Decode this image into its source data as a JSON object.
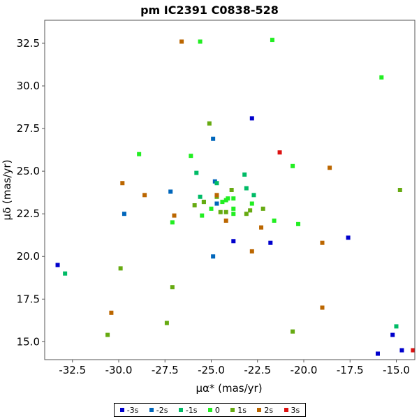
{
  "chart_data": {
    "type": "scatter",
    "title": "pm IC2391  C0838-528",
    "xlabel": "μα* (mas/yr)",
    "ylabel": "μδ (mas/yr)",
    "xlim": [
      -34.0,
      -14.0
    ],
    "ylim": [
      13.95,
      33.85
    ],
    "grid": false,
    "legend_position": "bottom-center",
    "xticks": [
      -32.5,
      -30.0,
      -27.5,
      -25.0,
      -22.5,
      -20.0,
      -17.5,
      -15.0
    ],
    "xtick_labels": [
      "-32.5",
      "-30.0",
      "-27.5",
      "-25.0",
      "-22.5",
      "-20.0",
      "-17.5",
      "-15.0"
    ],
    "yticks": [
      15.0,
      17.5,
      20.0,
      22.5,
      25.0,
      27.5,
      30.0,
      32.5
    ],
    "ytick_labels": [
      "15.0",
      "17.5",
      "20.0",
      "22.5",
      "25.0",
      "27.5",
      "30.0",
      "32.5"
    ],
    "series": [
      {
        "name": "-3s",
        "color": "#0000cc",
        "points": [
          [
            -33.3,
            19.5
          ],
          [
            -23.8,
            20.9
          ],
          [
            -22.8,
            28.1
          ],
          [
            -21.8,
            20.8
          ],
          [
            -17.6,
            21.1
          ],
          [
            -16.0,
            14.3
          ],
          [
            -15.2,
            15.4
          ],
          [
            -14.7,
            14.5
          ]
        ]
      },
      {
        "name": "-2s",
        "color": "#0066bb",
        "points": [
          [
            -29.7,
            22.5
          ],
          [
            -27.2,
            23.8
          ],
          [
            -24.9,
            26.9
          ],
          [
            -24.9,
            20.0
          ],
          [
            -24.8,
            24.4
          ],
          [
            -24.7,
            23.1
          ]
        ]
      },
      {
        "name": "-1s",
        "color": "#00bb66",
        "points": [
          [
            -32.9,
            19.0
          ],
          [
            -25.8,
            24.9
          ],
          [
            -25.6,
            23.5
          ],
          [
            -23.2,
            24.8
          ],
          [
            -23.1,
            24.0
          ],
          [
            -22.7,
            23.6
          ],
          [
            -24.7,
            24.3
          ],
          [
            -15.0,
            15.9
          ]
        ]
      },
      {
        "name": "0",
        "color": "#22ee22",
        "points": [
          [
            -28.9,
            26.0
          ],
          [
            -27.1,
            22.0
          ],
          [
            -26.1,
            25.9
          ],
          [
            -25.6,
            32.6
          ],
          [
            -25.5,
            22.4
          ],
          [
            -25.4,
            23.2
          ],
          [
            -24.4,
            23.2
          ],
          [
            -24.1,
            23.4
          ],
          [
            -23.8,
            23.4
          ],
          [
            -23.8,
            22.8
          ],
          [
            -23.8,
            22.5
          ],
          [
            -22.8,
            23.1
          ],
          [
            -21.7,
            32.7
          ],
          [
            -21.6,
            22.1
          ],
          [
            -20.6,
            25.3
          ],
          [
            -20.3,
            21.9
          ],
          [
            -15.8,
            30.5
          ],
          [
            -24.2,
            23.3
          ],
          [
            -25.0,
            22.8
          ]
        ]
      },
      {
        "name": "1s",
        "color": "#66aa11",
        "points": [
          [
            -30.6,
            15.4
          ],
          [
            -29.9,
            19.3
          ],
          [
            -27.4,
            16.1
          ],
          [
            -27.1,
            18.2
          ],
          [
            -25.9,
            23.0
          ],
          [
            -25.4,
            23.2
          ],
          [
            -25.1,
            27.8
          ],
          [
            -24.7,
            23.5
          ],
          [
            -24.5,
            22.6
          ],
          [
            -24.2,
            22.6
          ],
          [
            -23.9,
            23.9
          ],
          [
            -23.1,
            22.5
          ],
          [
            -22.9,
            22.7
          ],
          [
            -22.2,
            22.8
          ],
          [
            -20.6,
            15.6
          ],
          [
            -14.8,
            23.9
          ]
        ]
      },
      {
        "name": "2s",
        "color": "#bb6600",
        "points": [
          [
            -26.6,
            32.6
          ],
          [
            -30.4,
            16.7
          ],
          [
            -29.8,
            24.3
          ],
          [
            -28.6,
            23.6
          ],
          [
            -27.0,
            22.4
          ],
          [
            -24.7,
            23.6
          ],
          [
            -24.2,
            22.1
          ],
          [
            -22.8,
            20.3
          ],
          [
            -22.3,
            21.7
          ],
          [
            -19.0,
            20.8
          ],
          [
            -19.0,
            17.0
          ],
          [
            -18.6,
            25.2
          ]
        ]
      },
      {
        "name": "3s",
        "color": "#dd1111",
        "points": [
          [
            -21.3,
            26.1
          ],
          [
            -14.1,
            14.5
          ]
        ]
      }
    ]
  }
}
